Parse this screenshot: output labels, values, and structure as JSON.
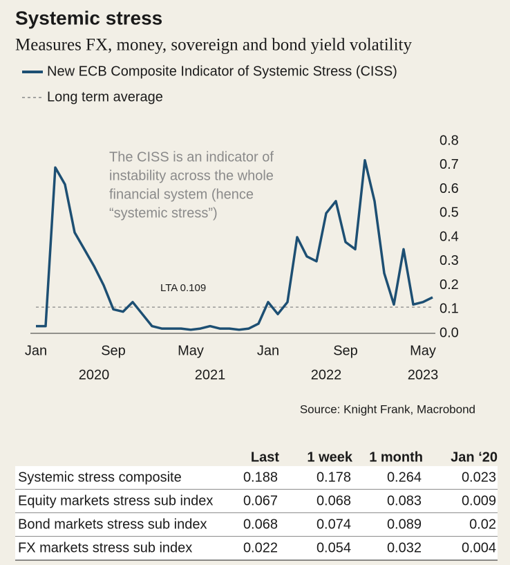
{
  "chart_data": {
    "type": "line",
    "title": "Systemic stress",
    "subtitle": "Measures FX, money, sovereign and bond yield volatility",
    "x": [
      "2020-01",
      "2020-02",
      "2020-03",
      "2020-04",
      "2020-05",
      "2020-06",
      "2020-07",
      "2020-08",
      "2020-09",
      "2020-10",
      "2020-11",
      "2020-12",
      "2021-01",
      "2021-02",
      "2021-03",
      "2021-04",
      "2021-05",
      "2021-06",
      "2021-07",
      "2021-08",
      "2021-09",
      "2021-10",
      "2021-11",
      "2021-12",
      "2022-01",
      "2022-02",
      "2022-03",
      "2022-04",
      "2022-05",
      "2022-06",
      "2022-07",
      "2022-08",
      "2022-09",
      "2022-10",
      "2022-11",
      "2022-12",
      "2023-01",
      "2023-02",
      "2023-03",
      "2023-04",
      "2023-05",
      "2023-06"
    ],
    "series": [
      {
        "name": "New ECB Composite Indicator of Systemic Stress (CISS)",
        "color": "#1d4f73",
        "values": [
          0.03,
          0.03,
          0.69,
          0.62,
          0.42,
          0.35,
          0.28,
          0.2,
          0.1,
          0.09,
          0.13,
          0.08,
          0.03,
          0.02,
          0.02,
          0.02,
          0.015,
          0.02,
          0.03,
          0.02,
          0.02,
          0.015,
          0.02,
          0.04,
          0.13,
          0.08,
          0.13,
          0.4,
          0.32,
          0.3,
          0.5,
          0.55,
          0.38,
          0.35,
          0.72,
          0.55,
          0.25,
          0.12,
          0.35,
          0.12,
          0.13,
          0.15
        ]
      }
    ],
    "reference_line": {
      "name": "Long term average",
      "label": "LTA 0.109",
      "value": 0.109,
      "color": "#888888"
    },
    "annotation": [
      "The CISS is an indicator of",
      "instability across the whole",
      "financial system (hence",
      "“systemic stress”)"
    ],
    "xlim": [
      "2020-01",
      "2023-06"
    ],
    "xticks": [
      {
        "value": "2020-01",
        "label": "Jan"
      },
      {
        "value": "2020-09",
        "label": "Sep"
      },
      {
        "value": "2021-05",
        "label": "May"
      },
      {
        "value": "2022-01",
        "label": "Jan"
      },
      {
        "value": "2022-09",
        "label": "Sep"
      },
      {
        "value": "2023-05",
        "label": "May"
      }
    ],
    "year_labels": [
      {
        "value": "2020-07",
        "label": "2020"
      },
      {
        "value": "2021-07",
        "label": "2021"
      },
      {
        "value": "2022-07",
        "label": "2022"
      },
      {
        "value": "2023-05",
        "label": "2023"
      }
    ],
    "ylim": [
      0,
      0.8
    ],
    "yticks": [
      {
        "value": 0,
        "label": "0.0"
      },
      0.1,
      0.2,
      0.3,
      0.4,
      0.5,
      0.6,
      0.7,
      0.8
    ],
    "source": "Source: Knight Frank, Macrobond"
  },
  "table": {
    "columns": [
      "Last",
      "1 week",
      "1 month",
      "Jan ‘20"
    ],
    "rows": [
      {
        "label": "Systemic stress composite",
        "values": [
          "0.188",
          "0.178",
          "0.264",
          "0.023"
        ]
      },
      {
        "label": "Equity markets stress sub index",
        "values": [
          "0.067",
          "0.068",
          "0.083",
          "0.009"
        ]
      },
      {
        "label": "Bond markets stress sub index",
        "values": [
          "0.068",
          "0.074",
          "0.089",
          "0.02"
        ]
      },
      {
        "label": "FX markets stress sub index",
        "values": [
          "0.022",
          "0.054",
          "0.032",
          "0.004"
        ]
      }
    ]
  }
}
